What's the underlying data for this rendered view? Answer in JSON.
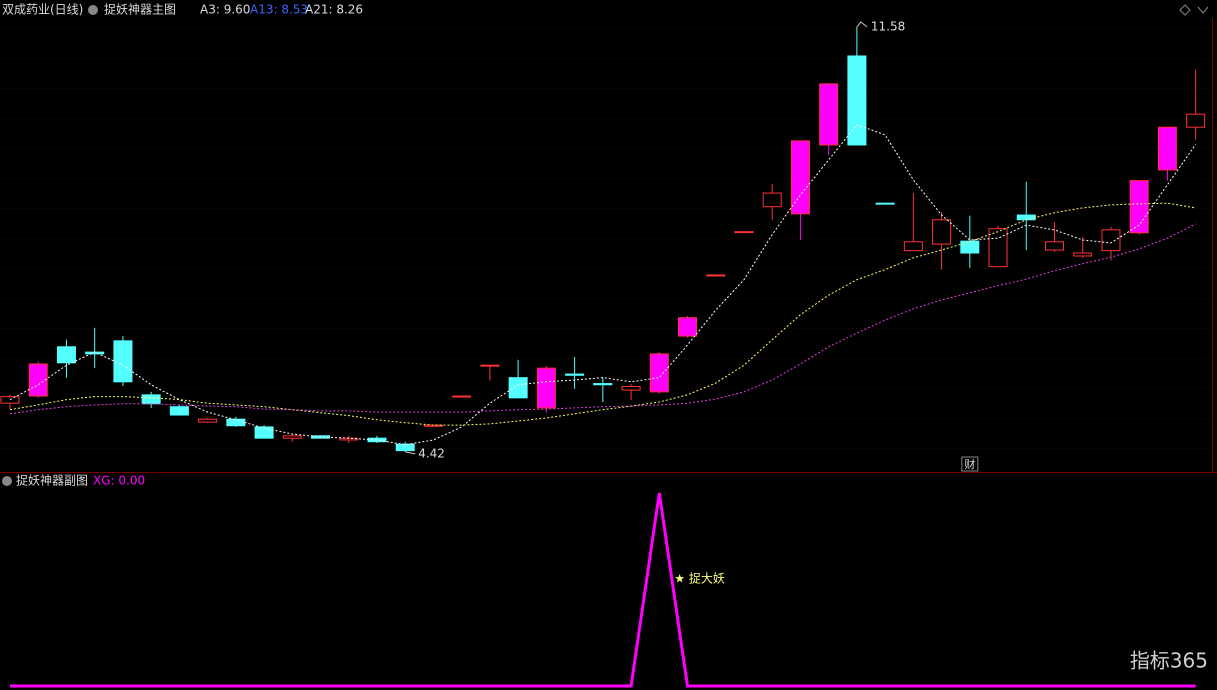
{
  "chart_data": [
    {
      "type": "candlestick",
      "subtitle": "双成药业(日线)",
      "title": "捉妖神器主图",
      "ylim": [
        4.08,
        11.73
      ],
      "open": [
        5.24,
        5.36,
        6.19,
        6.1,
        6.29,
        5.38,
        5.18,
        4.92,
        4.97,
        4.84,
        4.65,
        4.69,
        4.62,
        4.65,
        4.55,
        4.85,
        5.35,
        5.87,
        5.67,
        5.16,
        5.73,
        5.57,
        5.46,
        5.43,
        6.37,
        7.39,
        8.12,
        8.55,
        8.43,
        9.59,
        11.09,
        8.61,
        7.81,
        7.92,
        7.97,
        7.54,
        8.41,
        7.82,
        7.72,
        7.81,
        8.11,
        9.17,
        9.89
      ],
      "high": [
        5.38,
        5.94,
        6.31,
        6.51,
        6.37,
        5.43,
        5.21,
        4.99,
        5.01,
        4.87,
        4.72,
        4.7,
        4.69,
        4.69,
        4.59,
        4.87,
        5.36,
        5.88,
        5.97,
        5.87,
        6.02,
        5.67,
        5.56,
        6.1,
        6.71,
        7.4,
        8.13,
        8.93,
        9.66,
        10.62,
        11.58,
        8.61,
        8.78,
        8.46,
        8.4,
        8.23,
        8.97,
        8.29,
        8.04,
        8.21,
        8.99,
        9.89,
        10.86
      ],
      "low": [
        5.13,
        5.33,
        5.67,
        5.83,
        5.53,
        5.16,
        5.03,
        4.91,
        4.84,
        4.64,
        4.59,
        4.64,
        4.57,
        4.57,
        4.42,
        4.85,
        5.35,
        5.62,
        5.33,
        5.08,
        5.48,
        5.26,
        5.29,
        5.4,
        6.34,
        7.39,
        8.12,
        8.33,
        7.99,
        9.42,
        9.59,
        8.6,
        7.81,
        7.49,
        7.52,
        7.54,
        7.82,
        7.79,
        7.69,
        7.65,
        8.08,
        8.99,
        9.68
      ],
      "close": [
        5.35,
        5.9,
        5.92,
        6.07,
        5.6,
        5.23,
        5.04,
        4.97,
        4.86,
        4.65,
        4.69,
        4.65,
        4.65,
        4.59,
        4.44,
        4.87,
        5.36,
        5.88,
        5.33,
        5.83,
        5.71,
        5.55,
        5.52,
        6.07,
        6.68,
        7.4,
        8.13,
        8.78,
        9.66,
        10.62,
        9.59,
        8.6,
        7.96,
        8.33,
        7.77,
        8.18,
        8.33,
        7.96,
        7.77,
        8.16,
        8.99,
        9.89,
        10.11
      ],
      "up_color": "#ff3232",
      "colors": [
        "#ff3232",
        "#ff00ff",
        "#54ffff",
        "#54ffff",
        "#54ffff",
        "#54ffff",
        "#54ffff",
        "#ff3232",
        "#54ffff",
        "#54ffff",
        "#ff3232",
        "#54ffff",
        "#ff3232",
        "#54ffff",
        "#54ffff",
        "#ff3232",
        "#ff3232",
        "#ff3232",
        "#54ffff",
        "#ff00ff",
        "#54ffff",
        "#54ffff",
        "#ff3232",
        "#ff00ff",
        "#ff00ff",
        "#ff3232",
        "#ff3232",
        "#ff3232",
        "#ff00ff",
        "#ff00ff",
        "#54ffff",
        "#54ffff",
        "#ff3232",
        "#ff3232",
        "#54ffff",
        "#ff3232",
        "#54ffff",
        "#ff3232",
        "#ff3232",
        "#ff3232",
        "#ff00ff",
        "#ff00ff",
        "#ff3232"
      ],
      "series": [
        {
          "name": "A3",
          "label": "A3: 9.60",
          "color": "#ffffff",
          "values": [
            5.3,
            5.55,
            5.88,
            6.1,
            5.88,
            5.55,
            5.3,
            5.09,
            4.96,
            4.82,
            4.72,
            4.67,
            4.65,
            4.62,
            4.54,
            4.62,
            4.84,
            5.24,
            5.55,
            5.6,
            5.63,
            5.67,
            5.6,
            5.67,
            6.22,
            6.81,
            7.32,
            8.08,
            8.75,
            9.34,
            9.93,
            9.76,
            9.0,
            8.41,
            7.99,
            8.02,
            8.24,
            8.16,
            7.99,
            7.94,
            8.24,
            8.92,
            9.6
          ]
        },
        {
          "name": "A13",
          "label": "A13: 8.53",
          "color": "#ffff66",
          "values": [
            5.13,
            5.21,
            5.3,
            5.35,
            5.35,
            5.33,
            5.3,
            5.24,
            5.21,
            5.18,
            5.13,
            5.08,
            5.03,
            4.96,
            4.91,
            4.87,
            4.87,
            4.89,
            4.94,
            4.99,
            5.06,
            5.13,
            5.19,
            5.26,
            5.38,
            5.58,
            5.88,
            6.31,
            6.73,
            7.06,
            7.32,
            7.49,
            7.69,
            7.82,
            7.96,
            8.13,
            8.33,
            8.45,
            8.53,
            8.58,
            8.6,
            8.61,
            8.53
          ]
        },
        {
          "name": "A21",
          "label": "A21: 8.26",
          "color": "#e040e0",
          "values": [
            5.06,
            5.13,
            5.18,
            5.21,
            5.23,
            5.23,
            5.21,
            5.19,
            5.18,
            5.14,
            5.13,
            5.11,
            5.11,
            5.09,
            5.09,
            5.09,
            5.09,
            5.11,
            5.13,
            5.14,
            5.16,
            5.18,
            5.19,
            5.21,
            5.24,
            5.31,
            5.43,
            5.63,
            5.9,
            6.19,
            6.42,
            6.64,
            6.83,
            6.98,
            7.1,
            7.22,
            7.33,
            7.47,
            7.59,
            7.7,
            7.84,
            8.02,
            8.26
          ]
        }
      ],
      "high_label": 11.58,
      "high_index": 30,
      "low_label": 4.42,
      "low_index": 14,
      "marker": "财",
      "marker_index": 34
    },
    {
      "type": "line",
      "title": "捉妖神器副图",
      "ylim": [
        0,
        1
      ],
      "series": [
        {
          "name": "XG",
          "label": "XG: 0.00",
          "color": "#ff00ff",
          "values": [
            0,
            0,
            0,
            0,
            0,
            0,
            0,
            0,
            0,
            0,
            0,
            0,
            0,
            0,
            0,
            0,
            0,
            0,
            0,
            0,
            0,
            0,
            0,
            1,
            0,
            0,
            0,
            0,
            0,
            0,
            0,
            0,
            0,
            0,
            0,
            0,
            0,
            0,
            0,
            0,
            0,
            0,
            0
          ]
        }
      ],
      "annotation": "★ 捉大妖",
      "annotation_index": 23
    },
    {
      "type": "watermark",
      "text": "指标365"
    }
  ]
}
